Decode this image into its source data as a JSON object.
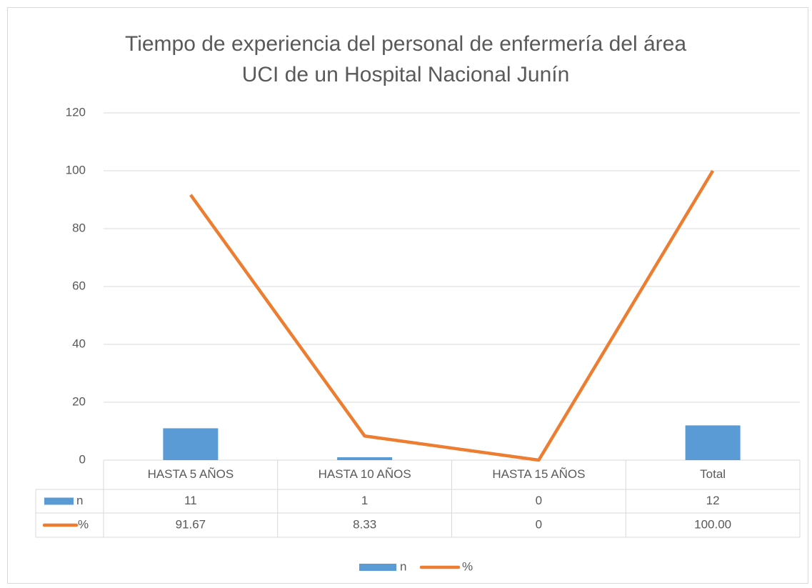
{
  "chart_data": {
    "type": "combo",
    "title": "Tiempo de experiencia del personal de enfermería del área UCI de un Hospital Nacional Junín",
    "categories": [
      "HASTA 5 AÑOS",
      "HASTA 10 AÑOS",
      "HASTA 15 AÑOS",
      "Total"
    ],
    "series": [
      {
        "name": "n",
        "type": "bar",
        "color": "#5b9bd5",
        "values": [
          11,
          1,
          0,
          12
        ]
      },
      {
        "name": "%",
        "type": "line",
        "color": "#ed7d31",
        "values": [
          91.67,
          8.33,
          0,
          100
        ],
        "value_labels": [
          "91.67",
          "8.33",
          "0",
          "100.00"
        ]
      }
    ],
    "ylim": [
      0,
      120
    ],
    "yticks": [
      0,
      20,
      40,
      60,
      80,
      100,
      120
    ],
    "grid": true,
    "legend": "bottom",
    "data_table": true
  }
}
